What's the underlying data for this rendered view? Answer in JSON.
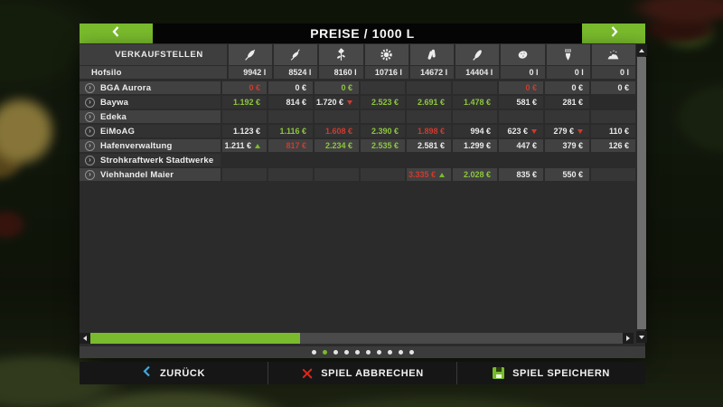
{
  "header": {
    "title": "PREISE / 1000 L",
    "prev_icon": "chevron-left",
    "next_icon": "chevron-right"
  },
  "table": {
    "header_label": "VERKAUFSTELLEN",
    "columns": [
      {
        "icon": "wheat-icon"
      },
      {
        "icon": "barley-icon"
      },
      {
        "icon": "canola-icon"
      },
      {
        "icon": "sunflower-icon"
      },
      {
        "icon": "soybean-icon"
      },
      {
        "icon": "maize-icon"
      },
      {
        "icon": "potato-icon"
      },
      {
        "icon": "sugar-beet-icon"
      },
      {
        "icon": "manure-icon"
      }
    ],
    "storage_row": {
      "name": "Hofsilo",
      "values": [
        "9942 l",
        "8524 l",
        "8160 l",
        "10716 l",
        "14672 l",
        "14404 l",
        "0 l",
        "0 l",
        "0 l"
      ]
    },
    "rows": [
      {
        "name": "BGA Aurora",
        "cells": [
          {
            "t": "0 €",
            "c": "red"
          },
          {
            "t": "0 €",
            "c": "white"
          },
          {
            "t": "0 €",
            "c": "green"
          },
          null,
          null,
          null,
          {
            "t": "0 €",
            "c": "red"
          },
          {
            "t": "0 €",
            "c": "white"
          },
          {
            "t": "0 €",
            "c": "white"
          }
        ]
      },
      {
        "name": "Baywa",
        "cells": [
          {
            "t": "1.192 €",
            "c": "green"
          },
          {
            "t": "814 €",
            "c": "white"
          },
          {
            "t": "1.720 €",
            "c": "white",
            "a": "down"
          },
          {
            "t": "2.523 €",
            "c": "green"
          },
          {
            "t": "2.691 €",
            "c": "green"
          },
          {
            "t": "1.478 €",
            "c": "green"
          },
          {
            "t": "581 €",
            "c": "white"
          },
          {
            "t": "281 €",
            "c": "white"
          },
          null
        ]
      },
      {
        "name": "Edeka",
        "cells": [
          null,
          null,
          null,
          null,
          null,
          null,
          null,
          null,
          null
        ]
      },
      {
        "name": "EiMoAG",
        "cells": [
          {
            "t": "1.123 €",
            "c": "white"
          },
          {
            "t": "1.116 €",
            "c": "green"
          },
          {
            "t": "1.608 €",
            "c": "red"
          },
          {
            "t": "2.390 €",
            "c": "green"
          },
          {
            "t": "1.898 €",
            "c": "red"
          },
          {
            "t": "994 €",
            "c": "white"
          },
          {
            "t": "623 €",
            "c": "white",
            "a": "down"
          },
          {
            "t": "279 €",
            "c": "white",
            "a": "down"
          },
          {
            "t": "110 €",
            "c": "white"
          }
        ]
      },
      {
        "name": "Hafenverwaltung",
        "cells": [
          {
            "t": "1.211 €",
            "c": "white",
            "a": "up"
          },
          {
            "t": "817 €",
            "c": "red"
          },
          {
            "t": "2.234 €",
            "c": "green"
          },
          {
            "t": "2.535 €",
            "c": "green"
          },
          {
            "t": "2.581 €",
            "c": "white"
          },
          {
            "t": "1.299 €",
            "c": "white"
          },
          {
            "t": "447 €",
            "c": "white"
          },
          {
            "t": "379 €",
            "c": "white"
          },
          {
            "t": "126 €",
            "c": "white"
          }
        ]
      },
      {
        "name": "Strohkraftwerk Stadtwerke",
        "cells": [
          null,
          null,
          null,
          null,
          null,
          null,
          null,
          null,
          null
        ]
      },
      {
        "name": "Viehhandel Maier",
        "cells": [
          null,
          null,
          null,
          null,
          {
            "t": "3.335 €",
            "c": "red",
            "a": "up"
          },
          {
            "t": "2.028 €",
            "c": "green"
          },
          {
            "t": "835 €",
            "c": "white"
          },
          {
            "t": "550 €",
            "c": "white"
          },
          null
        ]
      }
    ]
  },
  "pagination": {
    "count": 10,
    "active_index": 1
  },
  "footer": {
    "back": {
      "label": "ZURÜCK",
      "icon": "back-chevron-icon"
    },
    "cancel": {
      "label": "SPIEL ABBRECHEN",
      "icon": "cancel-x-icon"
    },
    "save": {
      "label": "SPIEL SPEICHERN",
      "icon": "save-floppy-icon"
    }
  },
  "colors": {
    "accent_green": "#79bb2d",
    "price_up_green": "#8dc63f",
    "price_down_red": "#cf3a2e",
    "back_blue": "#3fa9e0",
    "cancel_red": "#e0251b"
  }
}
